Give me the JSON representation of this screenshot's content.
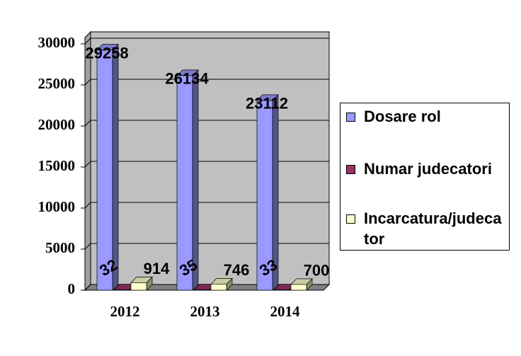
{
  "chart_data": {
    "type": "bar3d",
    "categories": [
      "2012",
      "2013",
      "2014"
    ],
    "series": [
      {
        "name": "Dosare rol",
        "color": "#9999ff",
        "values": [
          29258,
          26134,
          23112
        ]
      },
      {
        "name": "Numar judecatori",
        "color": "#993366",
        "values": [
          32,
          35,
          33
        ]
      },
      {
        "name": "Incarcatura/judecator",
        "color": "#ffffcc",
        "values": [
          914,
          746,
          700
        ]
      }
    ],
    "ylim": [
      0,
      30000
    ],
    "yticks": [
      0,
      5000,
      10000,
      15000,
      20000,
      25000,
      30000
    ],
    "grid": true,
    "legend": "right"
  }
}
